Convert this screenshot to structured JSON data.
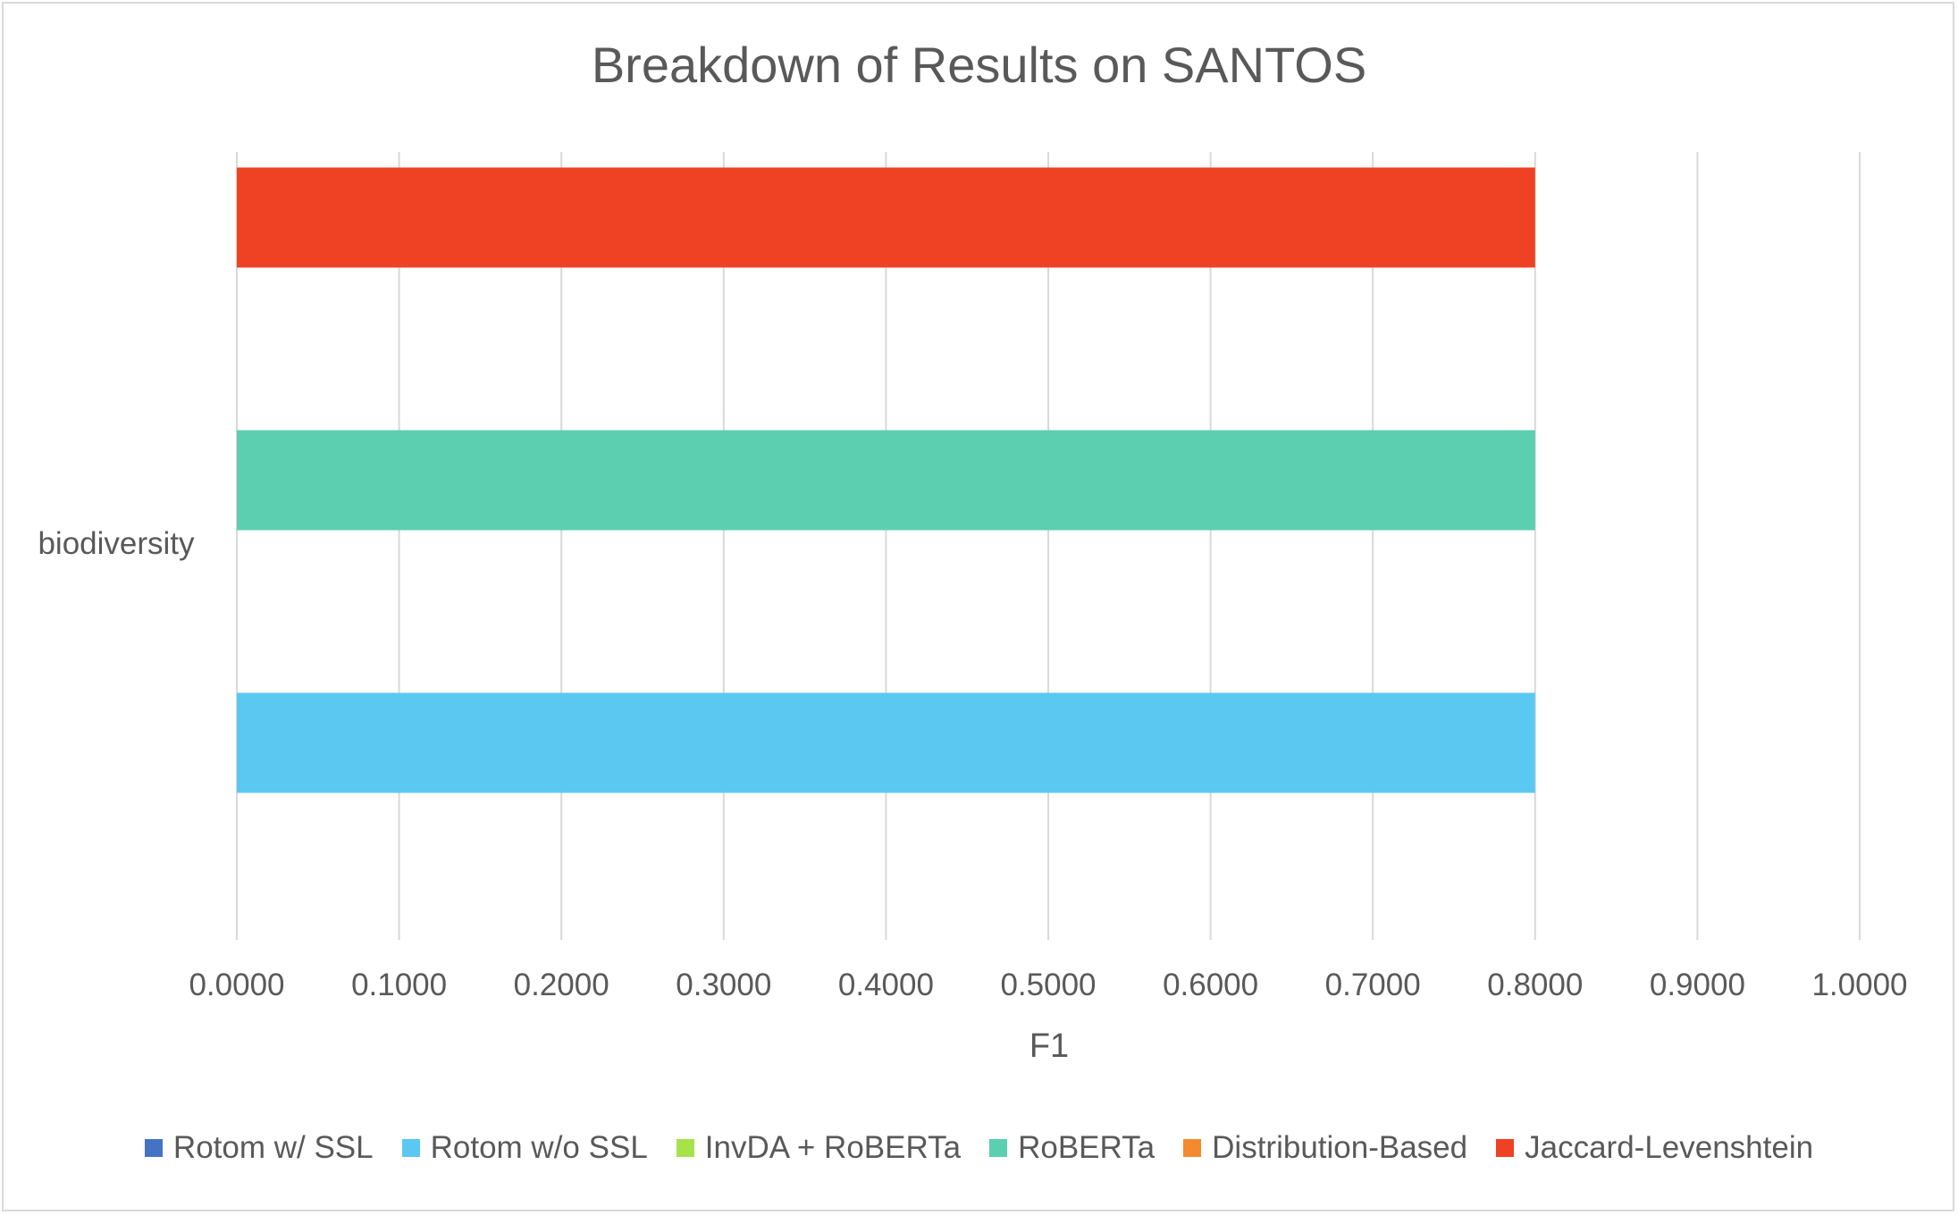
{
  "chart_data": {
    "type": "bar",
    "orientation": "horizontal",
    "title": "Breakdown of Results on SANTOS",
    "xlabel": "F1",
    "ylabel": "",
    "xlim": [
      0,
      1
    ],
    "x_tick_labels": [
      "0.0000",
      "0.1000",
      "0.2000",
      "0.3000",
      "0.4000",
      "0.5000",
      "0.6000",
      "0.7000",
      "0.8000",
      "0.9000",
      "1.0000"
    ],
    "categories": [
      "biodiversity"
    ],
    "grid": "vertical",
    "legend_position": "bottom",
    "series": [
      {
        "name": "Rotom w/ SSL",
        "color": "#4472C4",
        "values": [
          0
        ]
      },
      {
        "name": "Rotom w/o SSL",
        "color": "#5BC8F2",
        "values": [
          0.8
        ]
      },
      {
        "name": "InvDA + RoBERTa",
        "color": "#A6E34B",
        "values": [
          0
        ]
      },
      {
        "name": "RoBERTa",
        "color": "#5CCFB1",
        "values": [
          0.8
        ]
      },
      {
        "name": "Distribution-Based",
        "color": "#F5892D",
        "values": [
          0
        ]
      },
      {
        "name": "Jaccard-Levenshtein",
        "color": "#EF4123",
        "values": [
          0.8
        ]
      }
    ]
  }
}
